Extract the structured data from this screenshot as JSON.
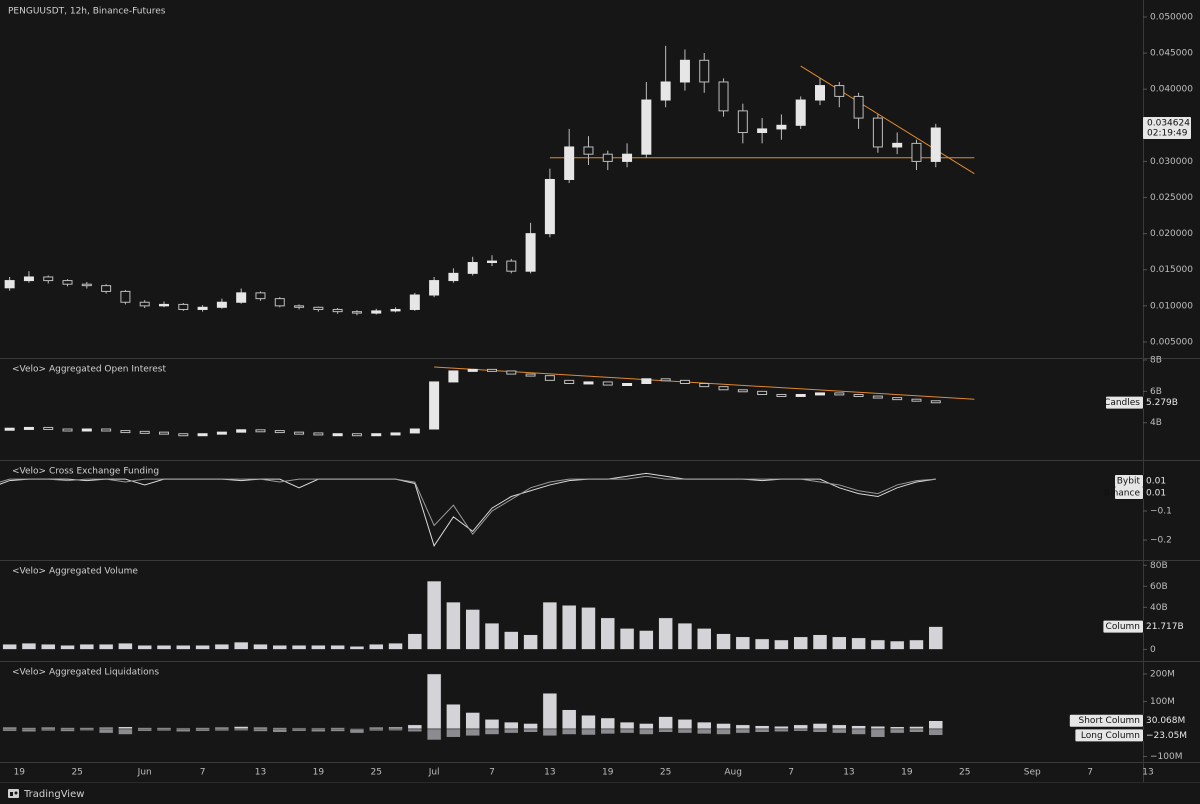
{
  "chart_data": [
    {
      "type": "candlestick",
      "title": "PENGUUSDT, 12h, Binance-Futures",
      "countdown": "02:19:49",
      "x": [
        "May 16",
        "May 18",
        "May 20",
        "May 22",
        "May 24",
        "May 26",
        "May 28",
        "May 30",
        "Jun 1",
        "Jun 3",
        "Jun 5",
        "Jun 7",
        "Jun 9",
        "Jun 11",
        "Jun 13",
        "Jun 15",
        "Jun 17",
        "Jun 19",
        "Jun 21",
        "Jun 23",
        "Jun 25",
        "Jun 27",
        "Jun 29",
        "Jul 1",
        "Jul 3",
        "Jul 5",
        "Jul 7",
        "Jul 9",
        "Jul 11",
        "Jul 13",
        "Jul 15",
        "Jul 17",
        "Jul 19",
        "Jul 21",
        "Jul 23",
        "Jul 25",
        "Jul 27",
        "Jul 29",
        "Jul 31",
        "Aug 2",
        "Aug 4",
        "Aug 6",
        "Aug 8",
        "Aug 10",
        "Aug 12",
        "Aug 14",
        "Aug 16",
        "Aug 18",
        "Aug 20",
        "Aug 22"
      ],
      "xlim": [
        "May 17",
        "Sep 13"
      ],
      "xticks": [
        {
          "value": "May 19",
          "label": "19"
        },
        {
          "value": "May 25",
          "label": "25"
        },
        {
          "value": "Jun 1",
          "label": "Jun"
        },
        {
          "value": "Jun 7",
          "label": "7"
        },
        {
          "value": "Jun 13",
          "label": "13"
        },
        {
          "value": "Jun 19",
          "label": "19"
        },
        {
          "value": "Jun 25",
          "label": "25"
        },
        {
          "value": "Jul 1",
          "label": "Jul"
        },
        {
          "value": "Jul 7",
          "label": "7"
        },
        {
          "value": "Jul 13",
          "label": "13"
        },
        {
          "value": "Jul 19",
          "label": "19"
        },
        {
          "value": "Jul 25",
          "label": "25"
        },
        {
          "value": "Aug 1",
          "label": "Aug"
        },
        {
          "value": "Aug 7",
          "label": "7"
        },
        {
          "value": "Aug 13",
          "label": "13"
        },
        {
          "value": "Aug 19",
          "label": "19"
        },
        {
          "value": "Aug 25",
          "label": "25"
        },
        {
          "value": "Sep 1",
          "label": "Sep"
        },
        {
          "value": "Sep 7",
          "label": "7"
        },
        {
          "value": "Sep 13",
          "label": "13"
        }
      ],
      "open": [
        0.0122,
        0.0125,
        0.0135,
        0.014,
        0.0135,
        0.013,
        0.0128,
        0.012,
        0.0105,
        0.01,
        0.0102,
        0.0095,
        0.0098,
        0.0105,
        0.0118,
        0.011,
        0.01,
        0.0098,
        0.0095,
        0.0092,
        0.009,
        0.0093,
        0.0095,
        0.0115,
        0.0135,
        0.0145,
        0.016,
        0.0162,
        0.0148,
        0.02,
        0.0275,
        0.032,
        0.031,
        0.03,
        0.031,
        0.0385,
        0.041,
        0.044,
        0.041,
        0.037,
        0.034,
        0.0345,
        0.035,
        0.0385,
        0.0405,
        0.039,
        0.036,
        0.032,
        0.0325,
        0.03
      ],
      "high": [
        0.013,
        0.014,
        0.0148,
        0.0142,
        0.0137,
        0.0133,
        0.013,
        0.0122,
        0.0108,
        0.0106,
        0.0104,
        0.0101,
        0.011,
        0.0124,
        0.012,
        0.0112,
        0.0102,
        0.0099,
        0.0097,
        0.0094,
        0.0096,
        0.0098,
        0.0118,
        0.014,
        0.0152,
        0.0168,
        0.017,
        0.0165,
        0.0215,
        0.029,
        0.0345,
        0.0335,
        0.0315,
        0.0325,
        0.041,
        0.046,
        0.0455,
        0.045,
        0.0415,
        0.038,
        0.036,
        0.0365,
        0.039,
        0.0415,
        0.041,
        0.0395,
        0.0365,
        0.034,
        0.033,
        0.0352
      ],
      "low": [
        0.0118,
        0.0121,
        0.0132,
        0.0131,
        0.0127,
        0.0124,
        0.0117,
        0.0102,
        0.0097,
        0.0098,
        0.0093,
        0.0092,
        0.0096,
        0.0103,
        0.0107,
        0.0098,
        0.0095,
        0.0092,
        0.0089,
        0.0087,
        0.0088,
        0.0091,
        0.0093,
        0.0112,
        0.0132,
        0.0142,
        0.0155,
        0.0145,
        0.0145,
        0.0195,
        0.027,
        0.0295,
        0.0288,
        0.0292,
        0.0305,
        0.0375,
        0.0398,
        0.0395,
        0.0362,
        0.0325,
        0.0325,
        0.033,
        0.0345,
        0.0378,
        0.0375,
        0.0345,
        0.0312,
        0.031,
        0.0288,
        0.0292
      ],
      "close": [
        0.0125,
        0.0135,
        0.014,
        0.0135,
        0.013,
        0.0128,
        0.012,
        0.0105,
        0.01,
        0.0102,
        0.0095,
        0.0098,
        0.0105,
        0.0118,
        0.011,
        0.01,
        0.0098,
        0.0095,
        0.0092,
        0.009,
        0.0093,
        0.0095,
        0.0115,
        0.0135,
        0.0145,
        0.016,
        0.0162,
        0.0148,
        0.02,
        0.0275,
        0.032,
        0.031,
        0.03,
        0.031,
        0.0385,
        0.041,
        0.044,
        0.041,
        0.037,
        0.034,
        0.0345,
        0.035,
        0.0385,
        0.0405,
        0.039,
        0.036,
        0.032,
        0.0325,
        0.03,
        0.034624
      ],
      "ylim": [
        0.00278,
        0.05235
      ],
      "yticks": [
        {
          "value": 0.005,
          "label": "0.005000"
        },
        {
          "value": 0.01,
          "label": "0.010000"
        },
        {
          "value": 0.015,
          "label": "0.015000"
        },
        {
          "value": 0.02,
          "label": "0.020000"
        },
        {
          "value": 0.025,
          "label": "0.025000"
        },
        {
          "value": 0.03,
          "label": "0.030000"
        },
        {
          "value": 0.04,
          "label": "0.040000"
        },
        {
          "value": 0.045,
          "label": "0.045000"
        },
        {
          "value": 0.05,
          "label": "0.050000"
        }
      ],
      "lines": [
        {
          "x": [
            "Jul 13",
            "Aug 26"
          ],
          "y": [
            0.0305,
            0.0305
          ],
          "color": "#e08a2c"
        },
        {
          "x": [
            "Aug 8",
            "Aug 26"
          ],
          "y": [
            0.0432,
            0.0283
          ],
          "color": "#e08a2c"
        }
      ]
    },
    {
      "type": "candlestick",
      "title": "<Velo> Aggregated Open Interest",
      "series": [
        {
          "name": "Candles",
          "color": "#e6e6e6",
          "last_label": "5.279B",
          "values": [
            3.6,
            3.65,
            3.7,
            3.6,
            3.55,
            3.6,
            3.5,
            3.45,
            3.4,
            3.3,
            3.25,
            3.3,
            3.4,
            3.55,
            3.5,
            3.4,
            3.35,
            3.3,
            3.3,
            3.25,
            3.3,
            3.35,
            3.6,
            6.6,
            7.3,
            7.4,
            7.3,
            7.1,
            7.0,
            6.7,
            6.5,
            6.6,
            6.4,
            6.5,
            6.8,
            6.7,
            6.5,
            6.3,
            6.1,
            6.0,
            5.8,
            5.7,
            5.8,
            5.9,
            5.8,
            5.7,
            5.6,
            5.5,
            5.4,
            5.279
          ]
        }
      ],
      "ylim": [
        1.625,
        8.125
      ],
      "yticks": [
        {
          "value": 8,
          "label": "8B"
        },
        {
          "value": 6,
          "label": "6B"
        },
        {
          "value": 4,
          "label": "4B"
        }
      ],
      "lines": [
        {
          "x": [
            "Jul 1",
            "Aug 26"
          ],
          "y": [
            7.55,
            5.5
          ],
          "color": "#e08a2c"
        }
      ]
    },
    {
      "type": "line",
      "title": "<Velo> Cross Exchange Funding",
      "series": [
        {
          "name": "Bybit",
          "color": "#d8d8d8",
          "values": [
            -0.02,
            0.005,
            0.01,
            0.01,
            0.01,
            0.005,
            0.01,
            0.01,
            -0.01,
            0.01,
            0.01,
            0.01,
            0.01,
            0.005,
            0.01,
            0.01,
            -0.02,
            0.01,
            0.01,
            0.01,
            0.01,
            0.01,
            -0.005,
            -0.22,
            -0.12,
            -0.17,
            -0.09,
            -0.05,
            -0.03,
            -0.01,
            0.005,
            0.01,
            0.01,
            0.02,
            0.03,
            0.02,
            0.01,
            0.01,
            0.01,
            0.01,
            0.005,
            0.01,
            0.01,
            0.01,
            -0.02,
            -0.04,
            -0.05,
            -0.02,
            0,
            0.01
          ]
        },
        {
          "name": "Binance",
          "color": "#9a9a9a",
          "values": [
            -0.01,
            0.01,
            0.01,
            0.01,
            0.005,
            0.01,
            0.01,
            0,
            0.01,
            0.01,
            0.01,
            0.01,
            0.01,
            0.01,
            0.01,
            0,
            0.01,
            0.01,
            0.01,
            0.01,
            0.01,
            0.01,
            0,
            -0.15,
            -0.08,
            -0.18,
            -0.1,
            -0.06,
            -0.02,
            0,
            0.01,
            0.01,
            0.01,
            0.01,
            0.02,
            0.01,
            0.01,
            0.01,
            0.01,
            0.01,
            0.01,
            0.01,
            0.01,
            0,
            -0.01,
            -0.03,
            -0.04,
            -0.01,
            0.005,
            0.01
          ]
        }
      ],
      "ylim": [
        -0.269,
        0.076
      ],
      "yticks": [
        {
          "value": -0.1,
          "label": "−0.1"
        },
        {
          "value": -0.2,
          "label": "−0.2"
        }
      ]
    },
    {
      "type": "bar",
      "title": "<Velo> Aggregated Volume",
      "series": [
        {
          "name": "Column",
          "color": "#d4d4d8",
          "last_label": "21.717B",
          "values": [
            4,
            5,
            6,
            5,
            4,
            5,
            5,
            6,
            4,
            4,
            4,
            4,
            5,
            7,
            5,
            4,
            4,
            4,
            4,
            3,
            5,
            6,
            15,
            65,
            45,
            38,
            25,
            17,
            14,
            45,
            42,
            40,
            30,
            20,
            18,
            30,
            25,
            20,
            15,
            12,
            10,
            9,
            12,
            14,
            12,
            11,
            9,
            8,
            9,
            21.717
          ]
        }
      ],
      "ylim": [
        -11,
        85
      ],
      "yticks": [
        {
          "value": 80,
          "label": "80B"
        },
        {
          "value": 60,
          "label": "60B"
        },
        {
          "value": 40,
          "label": "40B"
        },
        0
      ]
    },
    {
      "type": "bar",
      "title": "<Velo> Aggregated Liquidations",
      "series": [
        {
          "name": "Short Column",
          "color": "#d4d4d8",
          "last_label": "30.068M",
          "values": [
            8,
            6,
            5,
            6,
            5,
            5,
            6,
            8,
            5,
            5,
            4,
            5,
            6,
            9,
            6,
            5,
            4,
            4,
            5,
            3,
            6,
            7,
            15,
            200,
            90,
            60,
            35,
            25,
            20,
            130,
            70,
            50,
            40,
            25,
            20,
            45,
            35,
            25,
            20,
            15,
            12,
            10,
            15,
            20,
            15,
            12,
            10,
            8,
            9,
            30.068
          ]
        },
        {
          "name": "Long Column",
          "color": "#8c8c90",
          "last_label": "−23.05M",
          "values": [
            -6,
            -8,
            -10,
            -7,
            -9,
            -6,
            -15,
            -20,
            -8,
            -7,
            -10,
            -8,
            -7,
            -6,
            -9,
            -12,
            -8,
            -10,
            -9,
            -15,
            -7,
            -6,
            -10,
            -40,
            -30,
            -25,
            -20,
            -15,
            -12,
            -25,
            -20,
            -22,
            -18,
            -15,
            -20,
            -12,
            -15,
            -18,
            -20,
            -15,
            -12,
            -10,
            -8,
            -12,
            -15,
            -20,
            -30,
            -15,
            -12,
            -23.05
          ]
        }
      ],
      "ylim": [
        -120,
        247
      ],
      "yticks": [
        {
          "value": 200,
          "label": "200M"
        },
        {
          "value": 100,
          "label": "100M"
        },
        {
          "value": -100,
          "label": "−100M"
        }
      ]
    }
  ],
  "footer": "TradingView"
}
